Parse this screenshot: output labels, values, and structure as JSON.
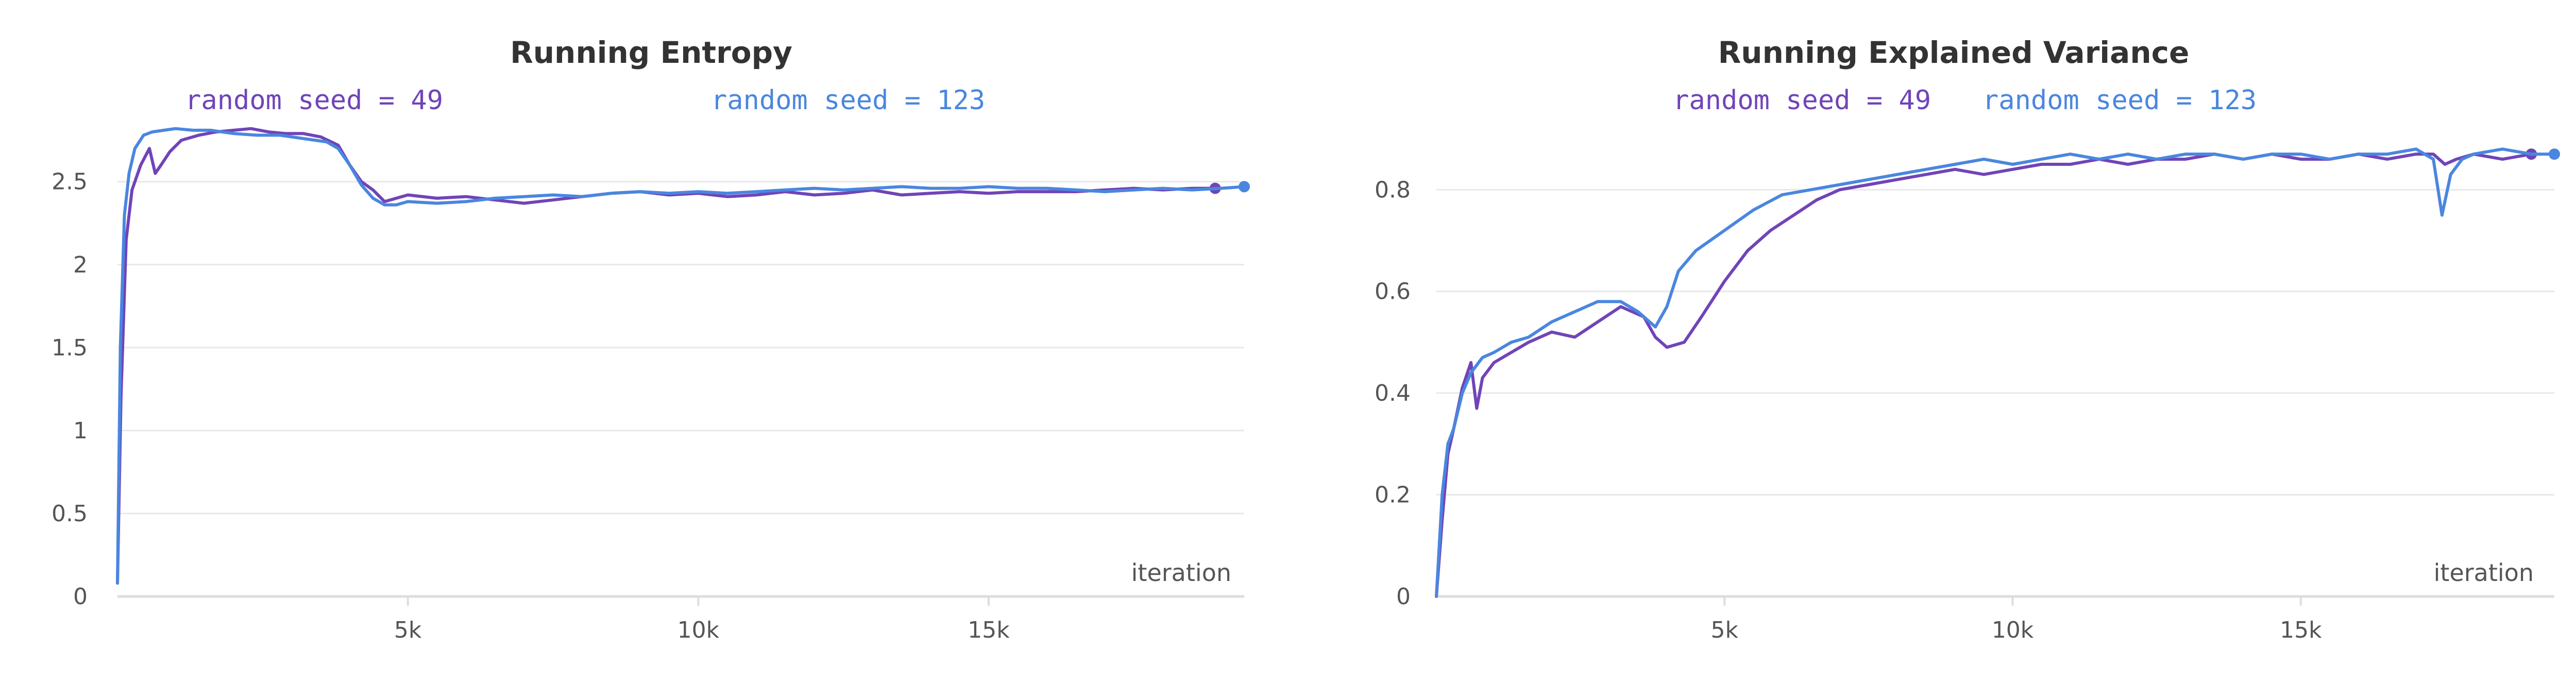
{
  "colors": {
    "seed_49": "#7044b8",
    "seed_123": "#4a86df",
    "grid": "#e8e8e8",
    "axis": "#dddddd"
  },
  "chart_data": [
    {
      "type": "line",
      "title": "Running Entropy",
      "xlabel": "iteration",
      "ylabel": "",
      "xlim": [
        0,
        19400
      ],
      "ylim": [
        0,
        2.85
      ],
      "x_ticks": [
        5000,
        10000,
        15000
      ],
      "x_tick_labels": [
        "5k",
        "10k",
        "15k"
      ],
      "y_ticks": [
        0,
        0.5,
        1,
        1.5,
        2,
        2.5
      ],
      "y_tick_labels": [
        "0",
        "0.5",
        "1",
        "1.5",
        "2",
        "2.5"
      ],
      "grid": true,
      "legend_position": "top-center",
      "series": [
        {
          "name": "random seed = 49",
          "color": "#7044b8",
          "x": [
            0,
            60,
            150,
            250,
            400,
            550,
            650,
            750,
            900,
            1100,
            1400,
            1700,
            2000,
            2300,
            2600,
            2900,
            3200,
            3500,
            3800,
            4000,
            4200,
            4400,
            4600,
            4800,
            5000,
            5500,
            6000,
            6500,
            7000,
            7500,
            8000,
            8500,
            9000,
            9500,
            10000,
            10500,
            11000,
            11500,
            12000,
            12500,
            13000,
            13500,
            14000,
            14500,
            15000,
            15500,
            16000,
            16500,
            17000,
            17500,
            18000,
            18500,
            18900
          ],
          "y": [
            0.08,
            1.2,
            2.15,
            2.45,
            2.6,
            2.7,
            2.55,
            2.6,
            2.68,
            2.75,
            2.78,
            2.8,
            2.81,
            2.82,
            2.8,
            2.79,
            2.79,
            2.77,
            2.72,
            2.6,
            2.5,
            2.45,
            2.38,
            2.4,
            2.42,
            2.4,
            2.41,
            2.39,
            2.37,
            2.39,
            2.41,
            2.43,
            2.44,
            2.42,
            2.43,
            2.41,
            2.42,
            2.44,
            2.42,
            2.43,
            2.45,
            2.42,
            2.43,
            2.44,
            2.43,
            2.44,
            2.44,
            2.44,
            2.45,
            2.46,
            2.45,
            2.46,
            2.46
          ]
        },
        {
          "name": "random seed = 123",
          "color": "#4a86df",
          "x": [
            0,
            50,
            120,
            200,
            300,
            450,
            600,
            800,
            1000,
            1300,
            1600,
            2000,
            2400,
            2800,
            3200,
            3600,
            3800,
            4000,
            4200,
            4400,
            4600,
            4800,
            5000,
            5500,
            6000,
            6500,
            7000,
            7500,
            8000,
            8500,
            9000,
            9500,
            10000,
            10500,
            11000,
            11500,
            12000,
            12500,
            13000,
            13500,
            14000,
            14500,
            15000,
            15500,
            16000,
            16500,
            17000,
            17500,
            18000,
            18500,
            19000,
            19400
          ],
          "y": [
            0.08,
            1.5,
            2.3,
            2.55,
            2.7,
            2.78,
            2.8,
            2.81,
            2.82,
            2.81,
            2.81,
            2.79,
            2.78,
            2.78,
            2.76,
            2.74,
            2.7,
            2.6,
            2.48,
            2.4,
            2.36,
            2.36,
            2.38,
            2.37,
            2.38,
            2.4,
            2.41,
            2.42,
            2.41,
            2.43,
            2.44,
            2.43,
            2.44,
            2.43,
            2.44,
            2.45,
            2.46,
            2.45,
            2.46,
            2.47,
            2.46,
            2.46,
            2.47,
            2.46,
            2.46,
            2.45,
            2.44,
            2.45,
            2.46,
            2.45,
            2.46,
            2.47
          ]
        }
      ]
    },
    {
      "type": "line",
      "title": "Running Explained Variance",
      "xlabel": "iteration",
      "ylabel": "",
      "xlim": [
        0,
        19400
      ],
      "ylim": [
        0,
        0.93
      ],
      "x_ticks": [
        5000,
        10000,
        15000
      ],
      "x_tick_labels": [
        "5k",
        "10k",
        "15k"
      ],
      "y_ticks": [
        0,
        0.2,
        0.4,
        0.6,
        0.8
      ],
      "y_tick_labels": [
        "0",
        "0.2",
        "0.4",
        "0.6",
        "0.8"
      ],
      "grid": true,
      "legend_position": "top-center",
      "series": [
        {
          "name": "random seed = 49",
          "color": "#7044b8",
          "x": [
            0,
            100,
            200,
            300,
            450,
            600,
            700,
            800,
            1000,
            1300,
            1600,
            2000,
            2400,
            2800,
            3200,
            3600,
            3800,
            4000,
            4300,
            4600,
            5000,
            5400,
            5800,
            6200,
            6600,
            7000,
            7500,
            8000,
            8500,
            9000,
            9500,
            10000,
            10500,
            11000,
            11500,
            12000,
            12500,
            13000,
            13500,
            14000,
            14500,
            15000,
            15500,
            16000,
            16500,
            17000,
            17300,
            17500,
            17700,
            18000,
            18500,
            19000
          ],
          "y": [
            0.0,
            0.15,
            0.28,
            0.33,
            0.41,
            0.46,
            0.37,
            0.43,
            0.46,
            0.48,
            0.5,
            0.52,
            0.51,
            0.54,
            0.57,
            0.55,
            0.51,
            0.49,
            0.5,
            0.55,
            0.62,
            0.68,
            0.72,
            0.75,
            0.78,
            0.8,
            0.81,
            0.82,
            0.83,
            0.84,
            0.83,
            0.84,
            0.85,
            0.85,
            0.86,
            0.85,
            0.86,
            0.86,
            0.87,
            0.86,
            0.87,
            0.86,
            0.86,
            0.87,
            0.86,
            0.87,
            0.87,
            0.85,
            0.86,
            0.87,
            0.86,
            0.87
          ]
        },
        {
          "name": "random seed = 123",
          "color": "#4a86df",
          "x": [
            0,
            100,
            200,
            300,
            450,
            600,
            800,
            1000,
            1300,
            1600,
            2000,
            2400,
            2800,
            3200,
            3500,
            3800,
            4000,
            4200,
            4500,
            5000,
            5500,
            6000,
            6500,
            7000,
            7500,
            8000,
            8500,
            9000,
            9500,
            10000,
            10500,
            11000,
            11500,
            12000,
            12500,
            13000,
            13500,
            14000,
            14500,
            15000,
            15500,
            16000,
            16500,
            17000,
            17300,
            17450,
            17600,
            17800,
            18000,
            18500,
            19000,
            19400
          ],
          "y": [
            0.0,
            0.2,
            0.3,
            0.33,
            0.4,
            0.44,
            0.47,
            0.48,
            0.5,
            0.51,
            0.54,
            0.56,
            0.58,
            0.58,
            0.56,
            0.53,
            0.57,
            0.64,
            0.68,
            0.72,
            0.76,
            0.79,
            0.8,
            0.81,
            0.82,
            0.83,
            0.84,
            0.85,
            0.86,
            0.85,
            0.86,
            0.87,
            0.86,
            0.87,
            0.86,
            0.87,
            0.87,
            0.86,
            0.87,
            0.87,
            0.86,
            0.87,
            0.87,
            0.88,
            0.86,
            0.75,
            0.83,
            0.86,
            0.87,
            0.88,
            0.87,
            0.87
          ]
        }
      ]
    }
  ]
}
